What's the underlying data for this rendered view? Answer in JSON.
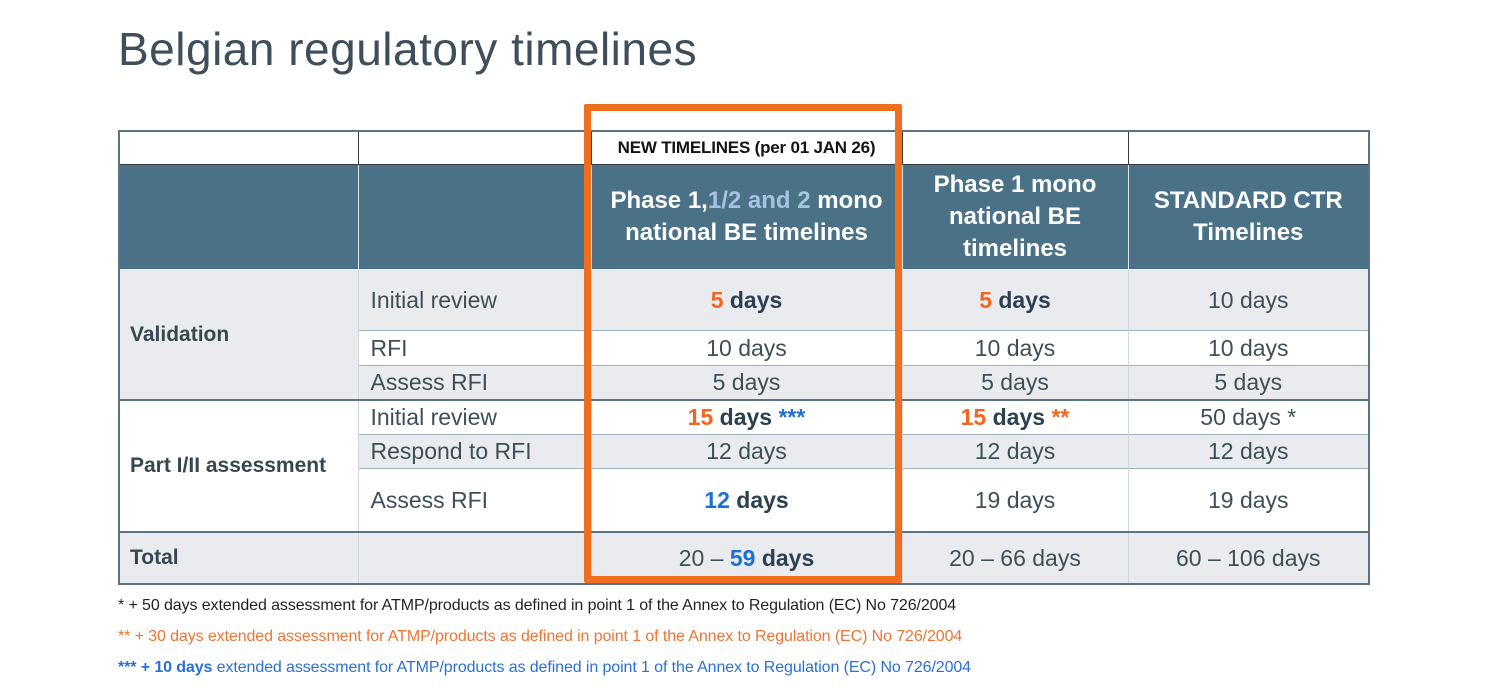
{
  "title": "Belgian regulatory timelines",
  "colors": {
    "header_bg": "#4a7186",
    "band_gray": "#e9ebee",
    "accent_orange": "#f3661d",
    "accent_blue": "#1e6fd2",
    "highlight_box": "#f06f1f",
    "title_text": "#3e4e5a"
  },
  "table": {
    "banner": "NEW TIMELINES (per 01 JAN 26)",
    "headers": [
      {
        "segments": [
          {
            "t": "Phase 1,",
            "s": "white"
          },
          {
            "t": "1/2 and 2",
            "s": "lightblue"
          },
          {
            "t": " mono national BE timelines",
            "s": "white"
          }
        ]
      },
      {
        "segments": [
          {
            "t": "Phase 1 mono national BE timelines",
            "s": "white"
          }
        ]
      },
      {
        "segments": [
          {
            "t": "STANDARD CTR Timelines",
            "s": "white"
          }
        ]
      }
    ],
    "sections": [
      {
        "label": "Validation",
        "rows": [
          {
            "activity": "Initial review",
            "values": [
              [
                {
                  "t": "5",
                  "s": "orange"
                },
                {
                  "t": " days",
                  "s": "bold"
                }
              ],
              [
                {
                  "t": "5",
                  "s": "orange"
                },
                {
                  "t": " days",
                  "s": "bold"
                }
              ],
              [
                {
                  "t": "10 days",
                  "s": "plain"
                }
              ]
            ]
          },
          {
            "activity": "RFI",
            "values": [
              [
                {
                  "t": "10 days",
                  "s": "plain"
                }
              ],
              [
                {
                  "t": "10 days",
                  "s": "plain"
                }
              ],
              [
                {
                  "t": "10 days",
                  "s": "plain"
                }
              ]
            ]
          },
          {
            "activity": "Assess RFI",
            "values": [
              [
                {
                  "t": "5 days",
                  "s": "plain"
                }
              ],
              [
                {
                  "t": "5 days",
                  "s": "plain"
                }
              ],
              [
                {
                  "t": "5 days",
                  "s": "plain"
                }
              ]
            ]
          }
        ]
      },
      {
        "label": "Part I/II assessment",
        "rows": [
          {
            "activity": "Initial review",
            "values": [
              [
                {
                  "t": "15",
                  "s": "orange"
                },
                {
                  "t": " days ",
                  "s": "bold"
                },
                {
                  "t": "***",
                  "s": "blue"
                }
              ],
              [
                {
                  "t": "15",
                  "s": "orange"
                },
                {
                  "t": " days ",
                  "s": "bold"
                },
                {
                  "t": "**",
                  "s": "orange"
                }
              ],
              [
                {
                  "t": "50 days *",
                  "s": "plain"
                }
              ]
            ]
          },
          {
            "activity": "Respond to RFI",
            "values": [
              [
                {
                  "t": "12 days",
                  "s": "plain"
                }
              ],
              [
                {
                  "t": "12 days",
                  "s": "plain"
                }
              ],
              [
                {
                  "t": "12 days",
                  "s": "plain"
                }
              ]
            ]
          },
          {
            "activity": "Assess RFI",
            "values": [
              [
                {
                  "t": "12",
                  "s": "blue"
                },
                {
                  "t": " days",
                  "s": "bold"
                }
              ],
              [
                {
                  "t": "19 days",
                  "s": "plain"
                }
              ],
              [
                {
                  "t": "19 days",
                  "s": "plain"
                }
              ]
            ]
          }
        ]
      }
    ],
    "total": {
      "label": "Total",
      "values": [
        [
          {
            "t": "20 – ",
            "s": "plain"
          },
          {
            "t": "59",
            "s": "blue"
          },
          {
            "t": " days",
            "s": "bold"
          }
        ],
        [
          {
            "t": "20 – 66 days",
            "s": "plain"
          }
        ],
        [
          {
            "t": "60 – 106 days",
            "s": "plain"
          }
        ]
      ]
    }
  },
  "footnotes": [
    {
      "segments": [
        {
          "t": "* + 50 days extended assessment for ATMP/products as defined in point 1 of the Annex to Regulation (EC) No 726/2004",
          "s": "plain"
        }
      ]
    },
    {
      "segments": [
        {
          "t": "** + 30 days extended assessment for ATMP/products as defined in point 1 of the Annex to Regulation (EC) No 726/2004",
          "s": "plain"
        }
      ]
    },
    {
      "segments": [
        {
          "t": "*** + 10 days",
          "s": "fnbold"
        },
        {
          "t": " extended assessment for ATMP/products as defined in point 1 of the Annex to Regulation (EC) No 726/2004",
          "s": "plain"
        }
      ]
    }
  ]
}
